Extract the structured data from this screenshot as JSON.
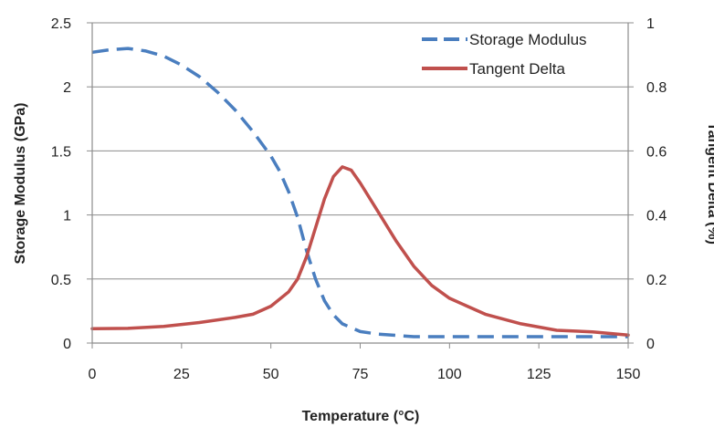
{
  "chart_data": {
    "type": "line",
    "xlabel": "Temperature (°C)",
    "ylabel_left": "Storage Modulus (GPa)",
    "ylabel_right": "Tangent Delta (%)",
    "xlim": [
      0,
      150
    ],
    "ylim_left": [
      0,
      2.5
    ],
    "ylim_right": [
      0,
      1
    ],
    "x_ticks": [
      0,
      25,
      50,
      75,
      100,
      125,
      150
    ],
    "y_left_ticks": [
      0,
      0.5,
      1,
      1.5,
      2,
      2.5
    ],
    "y_right_ticks": [
      0,
      0.2,
      0.4,
      0.6,
      0.8,
      1
    ],
    "grid": "horizontal",
    "legend_position": "top-right",
    "series": [
      {
        "name": "Storage Modulus",
        "axis": "left",
        "color": "#4a7ebf",
        "style": "dashed",
        "x": [
          0,
          5,
          10,
          15,
          20,
          25,
          30,
          35,
          40,
          45,
          50,
          52.5,
          55,
          57.5,
          60,
          62.5,
          65,
          67.5,
          70,
          75,
          80,
          85,
          90,
          100,
          110,
          125,
          150
        ],
        "y": [
          2.27,
          2.29,
          2.3,
          2.28,
          2.24,
          2.17,
          2.08,
          1.96,
          1.82,
          1.65,
          1.46,
          1.34,
          1.18,
          0.98,
          0.72,
          0.5,
          0.33,
          0.22,
          0.15,
          0.09,
          0.07,
          0.06,
          0.05,
          0.05,
          0.05,
          0.05,
          0.05
        ]
      },
      {
        "name": "Tangent Delta",
        "axis": "right",
        "color": "#c0504d",
        "style": "solid",
        "x": [
          0,
          10,
          20,
          30,
          40,
          45,
          50,
          55,
          57.5,
          60,
          62.5,
          65,
          67.5,
          70,
          72.5,
          75,
          80,
          85,
          90,
          95,
          100,
          110,
          120,
          130,
          140,
          150
        ],
        "y": [
          0.045,
          0.046,
          0.052,
          0.064,
          0.08,
          0.09,
          0.115,
          0.16,
          0.2,
          0.27,
          0.36,
          0.45,
          0.52,
          0.55,
          0.54,
          0.5,
          0.41,
          0.32,
          0.24,
          0.18,
          0.14,
          0.09,
          0.06,
          0.04,
          0.035,
          0.025
        ]
      }
    ]
  }
}
